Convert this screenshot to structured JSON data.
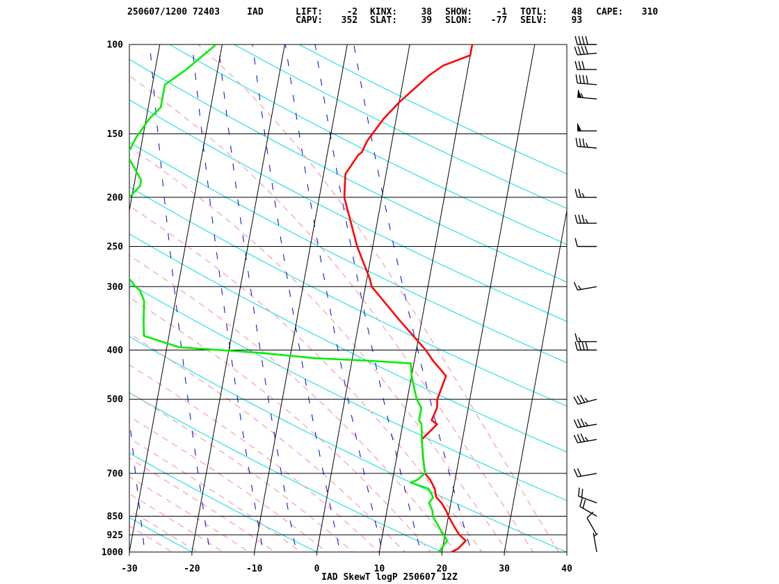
{
  "header": {
    "station_line": "250607/1200 72403     IAD",
    "indices": [
      {
        "label": "LIFT:",
        "value": "-2"
      },
      {
        "label": "KINX:",
        "value": "38"
      },
      {
        "label": "SHOW:",
        "value": "-1"
      },
      {
        "label": "TOTL:",
        "value": "48"
      },
      {
        "label": "CAPE:",
        "value": "310"
      },
      {
        "label": "CAPV:",
        "value": "352"
      },
      {
        "label": "SLAT:",
        "value": "39"
      },
      {
        "label": "SLON:",
        "value": "-77"
      },
      {
        "label": "SELV:",
        "value": "93"
      }
    ]
  },
  "chart_data": {
    "type": "line",
    "title": "IAD SkewT logP 250607 12Z",
    "xlim": [
      -30,
      40
    ],
    "ylim": [
      1000,
      100
    ],
    "yscale": "log",
    "x_ticks": [
      -30,
      -20,
      -10,
      0,
      10,
      20,
      30,
      40
    ],
    "y_ticks": [
      100,
      150,
      200,
      250,
      300,
      400,
      500,
      700,
      850,
      925,
      1000
    ],
    "series": [
      {
        "color": "#ff0000",
        "points": [
          [
            1000,
            21.5
          ],
          [
            985,
            22.5
          ],
          [
            950,
            23.5
          ],
          [
            925,
            22.3
          ],
          [
            900,
            21.5
          ],
          [
            850,
            20
          ],
          [
            830,
            19.5
          ],
          [
            800,
            18.5
          ],
          [
            780,
            17.5
          ],
          [
            750,
            17
          ],
          [
            720,
            16
          ],
          [
            700,
            15
          ],
          [
            650,
            14.2
          ],
          [
            600,
            13.5
          ],
          [
            560,
            15.5
          ],
          [
            550,
            14.5
          ],
          [
            520,
            15
          ],
          [
            500,
            14.8
          ],
          [
            450,
            15.5
          ],
          [
            420,
            13
          ],
          [
            400,
            11.5
          ],
          [
            350,
            6.5
          ],
          [
            300,
            1
          ],
          [
            290,
            0.5
          ],
          [
            250,
            -2.5
          ],
          [
            200,
            -6
          ],
          [
            180,
            -6.5
          ],
          [
            165,
            -5
          ],
          [
            163,
            -4.5
          ],
          [
            155,
            -4
          ],
          [
            140,
            -2
          ],
          [
            130,
            0
          ],
          [
            115,
            4
          ],
          [
            110,
            6
          ],
          [
            105,
            10
          ],
          [
            100,
            10
          ]
        ]
      },
      {
        "color": "#00ee00",
        "points": [
          [
            1000,
            19.5
          ],
          [
            985,
            19.8
          ],
          [
            950,
            20.5
          ],
          [
            925,
            19.8
          ],
          [
            900,
            19
          ],
          [
            850,
            17.5
          ],
          [
            830,
            17.3
          ],
          [
            800,
            16.5
          ],
          [
            780,
            17
          ],
          [
            750,
            16
          ],
          [
            730,
            13
          ],
          [
            720,
            14
          ],
          [
            700,
            15
          ],
          [
            650,
            14.2
          ],
          [
            600,
            13.5
          ],
          [
            560,
            13
          ],
          [
            550,
            12.5
          ],
          [
            520,
            12.5
          ],
          [
            500,
            11.5
          ],
          [
            450,
            10
          ],
          [
            425,
            9.5
          ],
          [
            420,
            3
          ],
          [
            415,
            -6
          ],
          [
            405,
            -15
          ],
          [
            395,
            -28
          ],
          [
            375,
            -34
          ],
          [
            350,
            -34.5
          ],
          [
            320,
            -35
          ],
          [
            305,
            -36
          ],
          [
            300,
            -36.8
          ],
          [
            250,
            -43
          ],
          [
            240,
            -40
          ],
          [
            232,
            -40
          ],
          [
            225,
            -43
          ],
          [
            220,
            -43
          ],
          [
            190,
            -39
          ],
          [
            185,
            -39
          ],
          [
            165,
            -42
          ],
          [
            152,
            -41
          ],
          [
            140,
            -39.5
          ],
          [
            133,
            -38
          ],
          [
            120,
            -38
          ],
          [
            112,
            -35
          ],
          [
            100,
            -31
          ]
        ]
      }
    ],
    "wind_barbs": [
      {
        "p": 1000,
        "dir": 350,
        "kt": 5
      },
      {
        "p": 925,
        "dir": 330,
        "kt": 10
      },
      {
        "p": 850,
        "dir": 300,
        "kt": 20
      },
      {
        "p": 800,
        "dir": 290,
        "kt": 20
      },
      {
        "p": 700,
        "dir": 260,
        "kt": 20
      },
      {
        "p": 600,
        "dir": 260,
        "kt": 35
      },
      {
        "p": 560,
        "dir": 260,
        "kt": 35
      },
      {
        "p": 500,
        "dir": 255,
        "kt": 35
      },
      {
        "p": 400,
        "dir": 270,
        "kt": 40
      },
      {
        "p": 385,
        "dir": 270,
        "kt": 15
      },
      {
        "p": 300,
        "dir": 260,
        "kt": 15
      },
      {
        "p": 250,
        "dir": 270,
        "kt": 10
      },
      {
        "p": 225,
        "dir": 270,
        "kt": 35
      },
      {
        "p": 200,
        "dir": 270,
        "kt": 25
      },
      {
        "p": 160,
        "dir": 275,
        "kt": 35
      },
      {
        "p": 148,
        "dir": 270,
        "kt": 50
      },
      {
        "p": 128,
        "dir": 275,
        "kt": 55
      },
      {
        "p": 120,
        "dir": 275,
        "kt": 40
      },
      {
        "p": 112,
        "dir": 270,
        "kt": 30
      },
      {
        "p": 104,
        "dir": 265,
        "kt": 40
      },
      {
        "p": 100,
        "dir": 270,
        "kt": 40
      }
    ]
  },
  "colors": {
    "temperature": "#ff0000",
    "dewpoint": "#00ee00",
    "isotherm": "#000000",
    "dry_adiabat": "#00dddd",
    "moist_adiabat": "#f7a8b8",
    "mixing_ratio": "#0000cc",
    "isobar": "#000000"
  }
}
